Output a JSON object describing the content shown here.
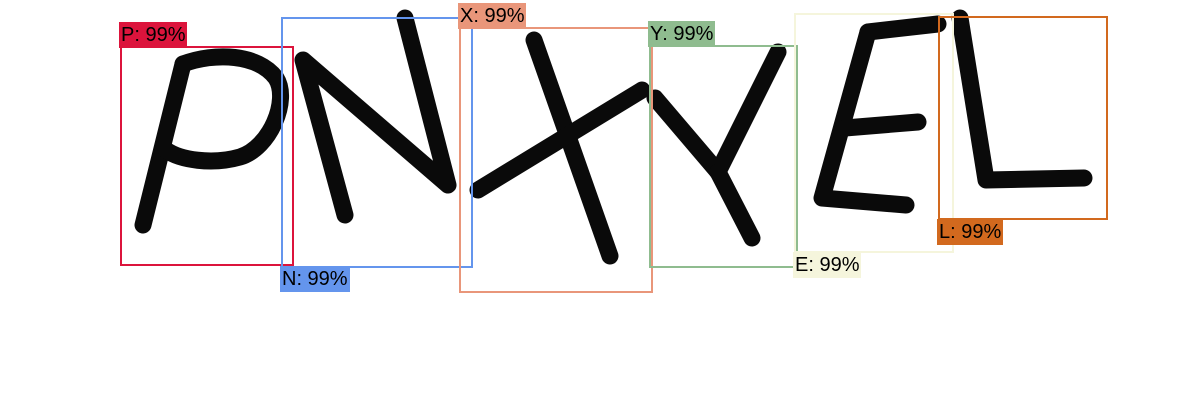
{
  "detections": [
    {
      "label_text": "P: 99%",
      "color": "#dc143c"
    },
    {
      "label_text": "N: 99%",
      "color": "#6495ed"
    },
    {
      "label_text": "X: 99%",
      "color": "#e9967a"
    },
    {
      "label_text": "Y: 99%",
      "color": "#8fbc8f"
    },
    {
      "label_text": "E: 99%",
      "color": "#f5f5dc"
    },
    {
      "label_text": "L: 99%",
      "color": "#d2691e"
    }
  ]
}
